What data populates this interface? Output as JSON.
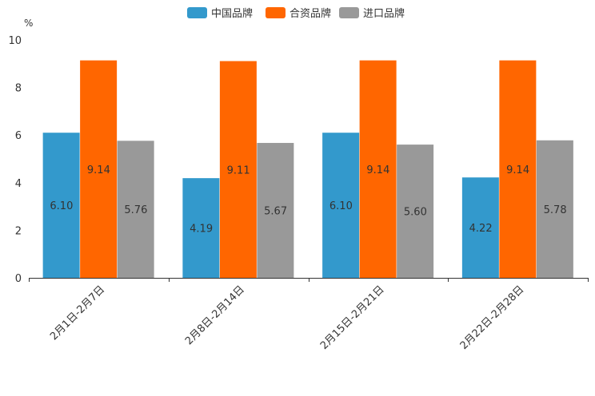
{
  "chart_data": {
    "type": "bar",
    "title": "",
    "xlabel": "",
    "ylabel": "",
    "unit": "%",
    "ylim": [
      0,
      10
    ],
    "yticks": [
      0,
      2,
      4,
      6,
      8,
      10
    ],
    "categories": [
      "2月1日-2月7日",
      "2月8日-2月14日",
      "2月15日-2月21日",
      "2月22日-2月28日"
    ],
    "series": [
      {
        "name": "中国品牌",
        "color": "#3399cc",
        "values": [
          6.1,
          4.19,
          6.1,
          4.22
        ],
        "labels": [
          "6.10",
          "4.19",
          "6.10",
          "4.22"
        ]
      },
      {
        "name": "合资品牌",
        "color": "#ff6600",
        "values": [
          9.14,
          9.11,
          9.14,
          9.14
        ],
        "labels": [
          "9.14",
          "9.11",
          "9.14",
          "9.14"
        ]
      },
      {
        "name": "进口品牌",
        "color": "#999999",
        "values": [
          5.76,
          5.67,
          5.6,
          5.78
        ],
        "labels": [
          "5.76",
          "5.67",
          "5.60",
          "5.78"
        ]
      }
    ],
    "legend_position": "top-center",
    "grid": false
  }
}
